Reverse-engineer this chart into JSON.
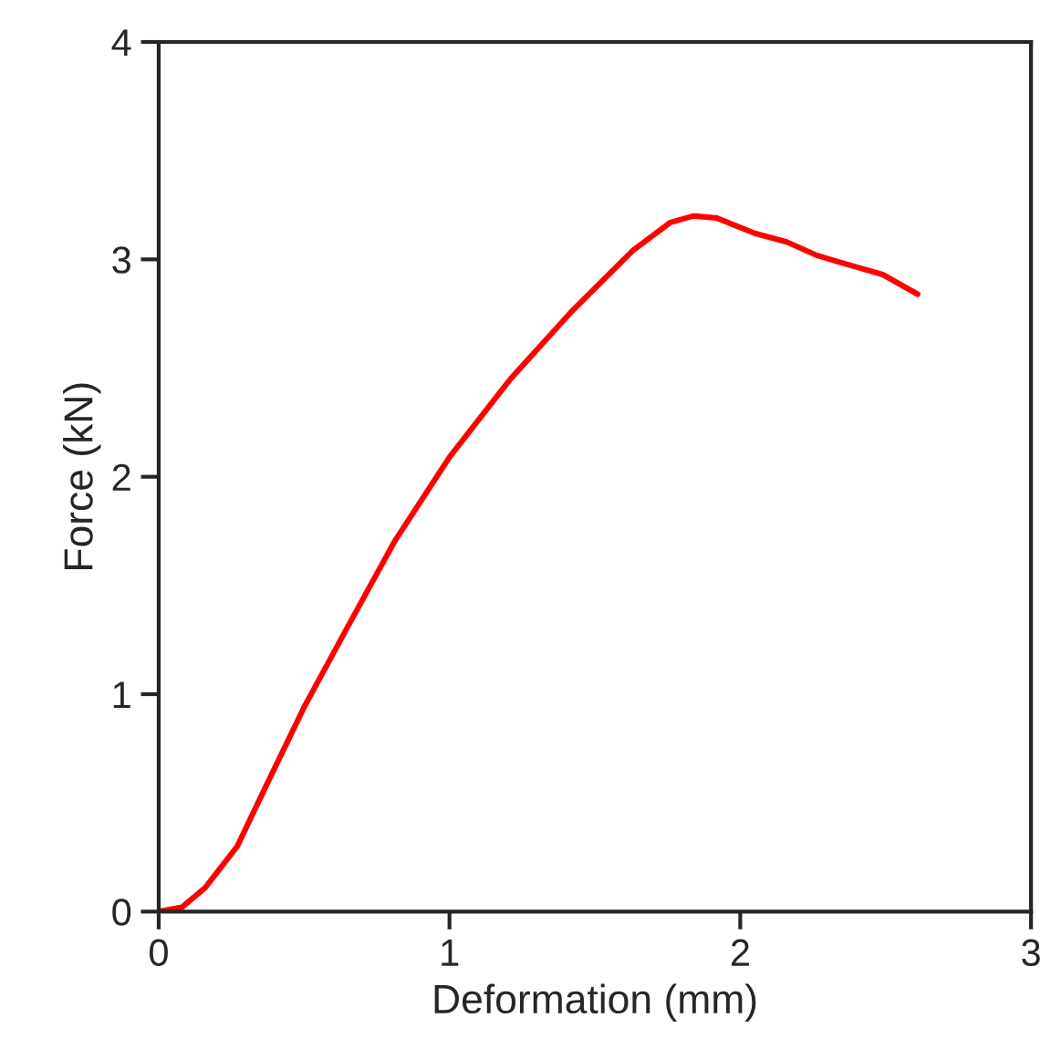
{
  "chart_data": {
    "type": "line",
    "xlabel": "Deformation (mm)",
    "ylabel": "Force (kN)",
    "xlim": [
      0,
      3
    ],
    "ylim": [
      0,
      4
    ],
    "xticks": [
      0,
      1,
      2,
      3
    ],
    "yticks": [
      0,
      1,
      2,
      3,
      4
    ],
    "grid": false,
    "series": [
      {
        "color": "#ff0000",
        "x": [
          0,
          0.08,
          0.16,
          0.27,
          0.37,
          0.5,
          0.65,
          0.81,
          1.0,
          1.21,
          1.42,
          1.63,
          1.76,
          1.84,
          1.92,
          2.05,
          2.16,
          2.26,
          2.36,
          2.49,
          2.61
        ],
        "values": [
          0,
          0.02,
          0.11,
          0.3,
          0.58,
          0.94,
          1.31,
          1.7,
          2.09,
          2.45,
          2.76,
          3.04,
          3.17,
          3.2,
          3.19,
          3.12,
          3.08,
          3.02,
          2.98,
          2.93,
          2.84
        ]
      }
    ]
  }
}
